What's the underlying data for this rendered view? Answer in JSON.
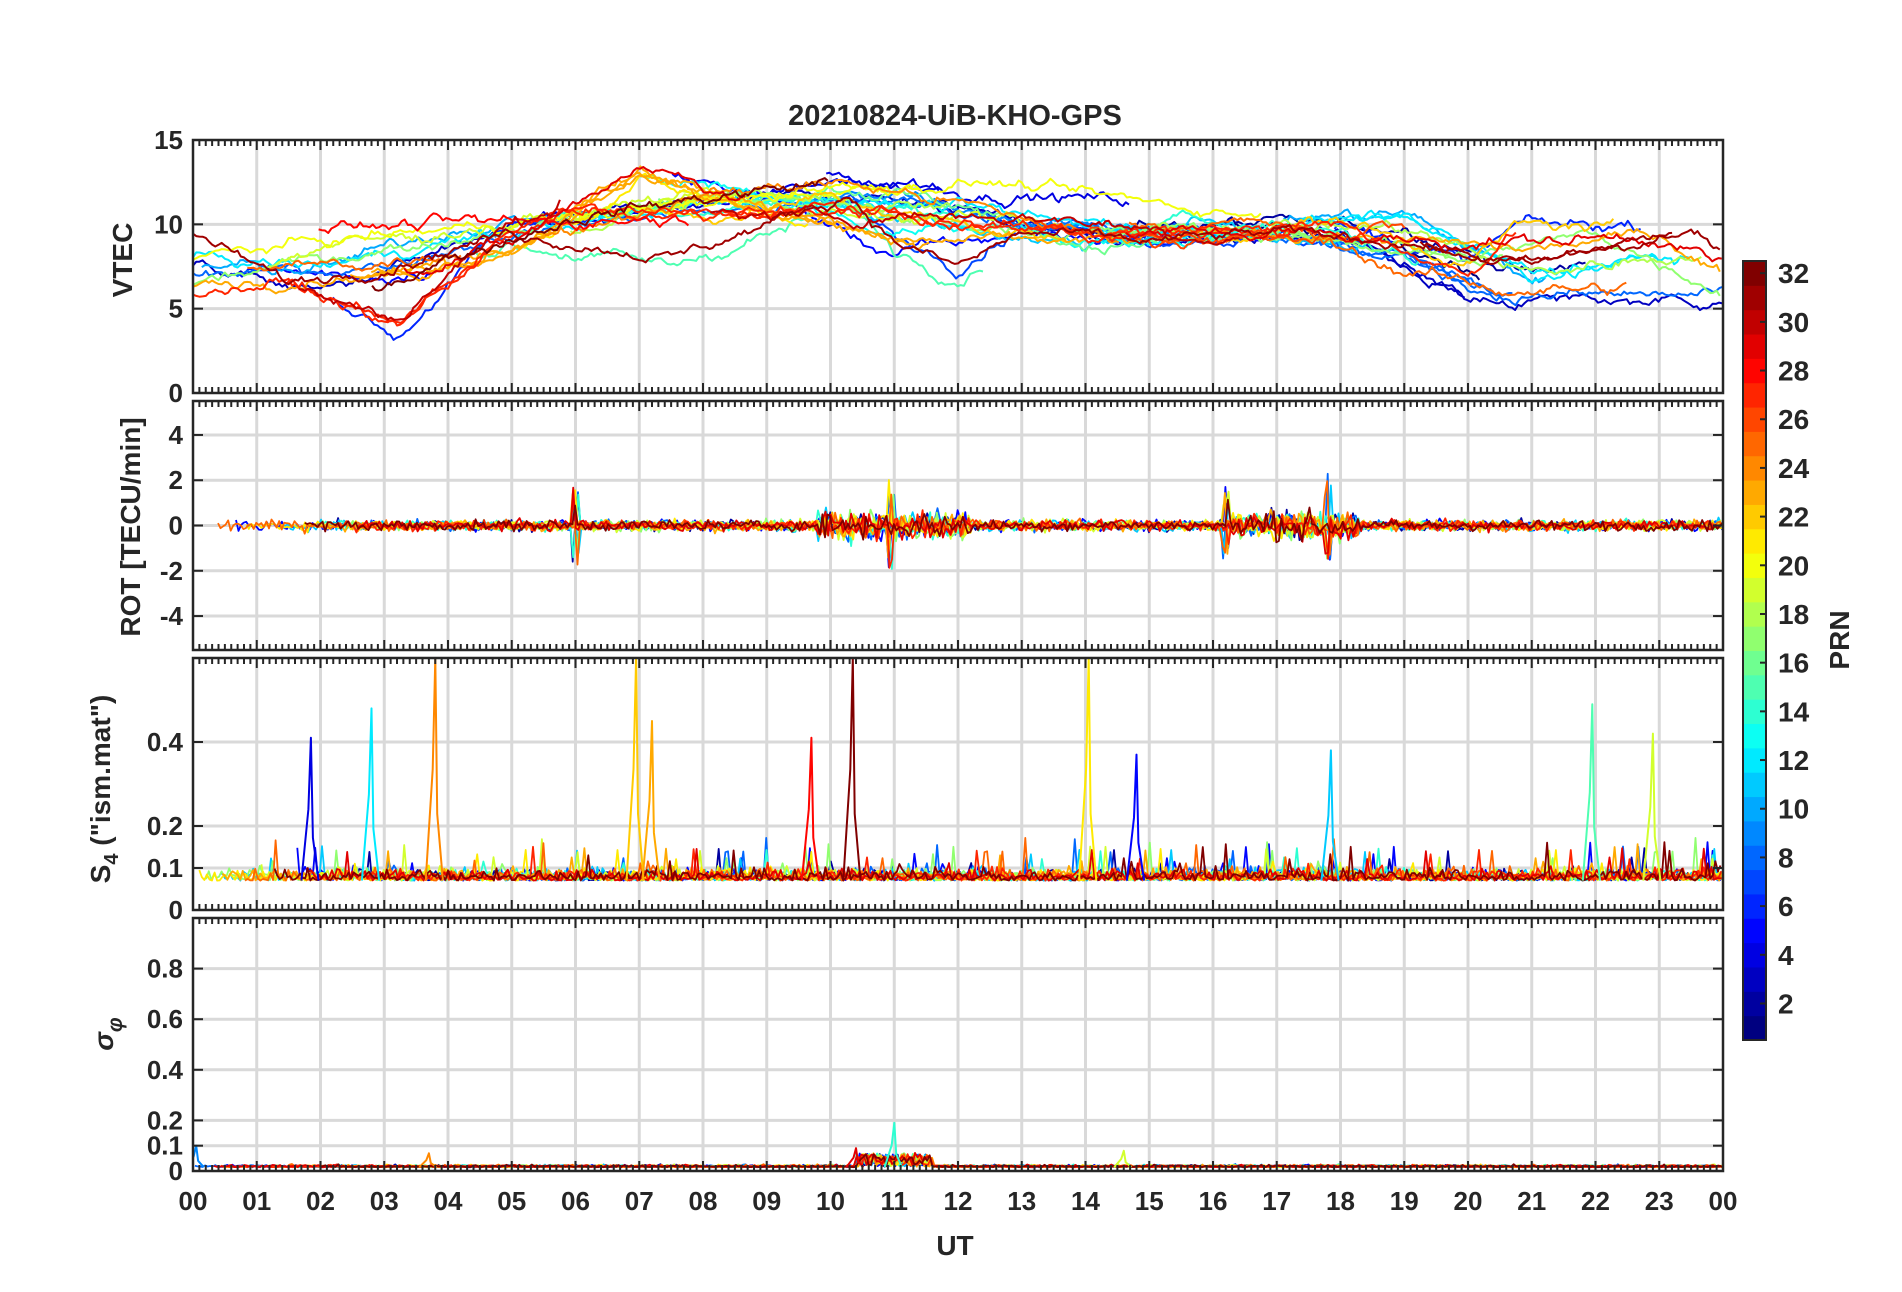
{
  "title": "20210824-UiB-KHO-GPS",
  "x_axis": {
    "label": "UT",
    "tick_labels": [
      "00",
      "01",
      "02",
      "03",
      "04",
      "05",
      "06",
      "07",
      "08",
      "09",
      "10",
      "11",
      "12",
      "13",
      "14",
      "15",
      "16",
      "17",
      "18",
      "19",
      "20",
      "21",
      "22",
      "23",
      "00"
    ]
  },
  "colorbar": {
    "label": "PRN",
    "range": [
      1,
      32
    ],
    "tick_labels": [
      "2",
      "4",
      "6",
      "8",
      "10",
      "12",
      "14",
      "16",
      "18",
      "20",
      "22",
      "24",
      "26",
      "28",
      "30",
      "32"
    ],
    "colormap": "jet"
  },
  "chart_data": [
    {
      "type": "line",
      "panel": "VTEC",
      "ylabel": "VTEC",
      "xlim": [
        0,
        24
      ],
      "ylim": [
        0,
        15
      ],
      "y_tick_labels": [
        "0",
        "5",
        "10",
        "15"
      ],
      "grid": true,
      "description_series": "one trace per PRN (1-32)",
      "series": [
        {
          "prn": 3,
          "x": [
            0,
            2,
            4,
            6,
            8,
            10,
            12,
            14,
            16,
            18,
            20
          ],
          "values": [
            7.5,
            6,
            8.5,
            10.5,
            11.2,
            11.8,
            11,
            9.5,
            9,
            9.5,
            5.5
          ]
        },
        {
          "prn": 8,
          "x": [
            0,
            3,
            5,
            7,
            9,
            11,
            13,
            15,
            17,
            19,
            20.5
          ],
          "values": [
            7,
            7.5,
            9.5,
            10.5,
            11,
            11.5,
            10,
            9.5,
            9.5,
            8,
            5.8
          ]
        },
        {
          "prn": 12,
          "x": [
            0,
            2,
            4,
            6,
            8,
            10,
            12,
            14,
            16,
            19,
            21,
            23
          ],
          "values": [
            8,
            7.5,
            9,
            10,
            11.5,
            11.5,
            11,
            10,
            9.5,
            10.5,
            7,
            8
          ]
        },
        {
          "prn": 17,
          "x": [
            0,
            2,
            4,
            6,
            8,
            10,
            12,
            14,
            16,
            18,
            20,
            22,
            24
          ],
          "values": [
            6.5,
            8,
            9,
            10.5,
            11.5,
            11,
            10,
            9.5,
            9.5,
            9,
            8,
            9.5,
            6
          ]
        },
        {
          "prn": 20,
          "x": [
            0,
            2,
            7.5,
            10,
            12.5,
            15.7,
            16.8
          ],
          "values": [
            8,
            9,
            11,
            12,
            12.5,
            11,
            10.5
          ]
        },
        {
          "prn": 23,
          "x": [
            0,
            3,
            5,
            7,
            9,
            11,
            13,
            15,
            17,
            19,
            21,
            23,
            24
          ],
          "values": [
            6.5,
            7,
            8.5,
            13,
            11,
            9,
            9,
            9,
            9.5,
            9,
            8.5,
            9.5,
            7
          ]
        },
        {
          "prn": 27,
          "x": [
            0,
            1.5,
            3.2,
            4.8,
            6,
            8,
            10,
            12,
            14,
            16,
            18,
            20,
            20.8
          ],
          "values": [
            6,
            6.5,
            4,
            9,
            11,
            10.5,
            11,
            10,
            9.5,
            9.5,
            10,
            7,
            10
          ]
        },
        {
          "prn": 31,
          "x": [
            0,
            1.5,
            3,
            5,
            7.5,
            9,
            10.3,
            11,
            12,
            13,
            15,
            17,
            19,
            21,
            22.5,
            23.5,
            24
          ],
          "values": [
            9.5,
            6.5,
            7.5,
            9.5,
            8,
            10,
            11.8,
            9,
            7.5,
            9.5,
            9,
            9.5,
            9,
            7.5,
            9,
            9.5,
            8
          ]
        }
      ]
    },
    {
      "type": "line",
      "panel": "ROT",
      "ylabel": "ROT [TECU/min]",
      "xlim": [
        0,
        24
      ],
      "ylim": [
        -5.5,
        5.5
      ],
      "y_tick_labels": [
        "-4",
        "-2",
        "0",
        "2",
        "4"
      ],
      "grid": true,
      "description_series": "rate of TEC per PRN, fluctuations around 0",
      "peak_events": [
        {
          "x": 10.95,
          "values": [
            2.5,
            -2.0
          ]
        },
        {
          "x": 17.8,
          "values": [
            2.3,
            -1.6
          ]
        },
        {
          "x": 6.0,
          "values": [
            1.7,
            -1.8
          ]
        },
        {
          "x": 16.2,
          "values": [
            1.8,
            -1.6
          ]
        }
      ]
    },
    {
      "type": "line",
      "panel": "S4",
      "ylabel": "S4 (\"ism.mat\")",
      "xlim": [
        0,
        24
      ],
      "ylim": [
        0,
        0.6
      ],
      "y_tick_labels": [
        "0",
        "0.1",
        "0.2",
        "0.4"
      ],
      "grid": true,
      "description_series": "amplitude scintillation index per PRN, baseline ~0.05-0.12",
      "peak_events": [
        {
          "x": 1.85,
          "value": 0.41,
          "prn": 4
        },
        {
          "x": 2.8,
          "value": 0.48,
          "prn": 12
        },
        {
          "x": 3.8,
          "value": 0.6,
          "prn": 24
        },
        {
          "x": 6.95,
          "value": 0.6,
          "prn": 22
        },
        {
          "x": 7.2,
          "value": 0.45,
          "prn": 23
        },
        {
          "x": 9.7,
          "value": 0.41,
          "prn": 28
        },
        {
          "x": 10.35,
          "value": 0.6,
          "prn": 32
        },
        {
          "x": 14.05,
          "value": 0.6,
          "prn": 21
        },
        {
          "x": 14.8,
          "value": 0.37,
          "prn": 5
        },
        {
          "x": 17.85,
          "value": 0.38,
          "prn": 11
        },
        {
          "x": 21.95,
          "value": 0.49,
          "prn": 15
        },
        {
          "x": 22.9,
          "value": 0.42,
          "prn": 19
        }
      ]
    },
    {
      "type": "line",
      "panel": "sigma_phi",
      "ylabel": "σ φ",
      "xlim": [
        0,
        24
      ],
      "ylim": [
        0,
        1
      ],
      "y_tick_labels": [
        "0",
        "0.1",
        "0.2",
        "0.4",
        "0.6",
        "0.8"
      ],
      "grid": true,
      "description_series": "phase scintillation index per PRN, baseline ~0.01-0.03",
      "peak_events": [
        {
          "x": 0.05,
          "value": 0.1
        },
        {
          "x": 11.0,
          "value": 0.19
        },
        {
          "x": 14.6,
          "value": 0.08
        },
        {
          "x": 3.7,
          "value": 0.07
        },
        {
          "x": 10.4,
          "value": 0.09
        }
      ]
    }
  ]
}
